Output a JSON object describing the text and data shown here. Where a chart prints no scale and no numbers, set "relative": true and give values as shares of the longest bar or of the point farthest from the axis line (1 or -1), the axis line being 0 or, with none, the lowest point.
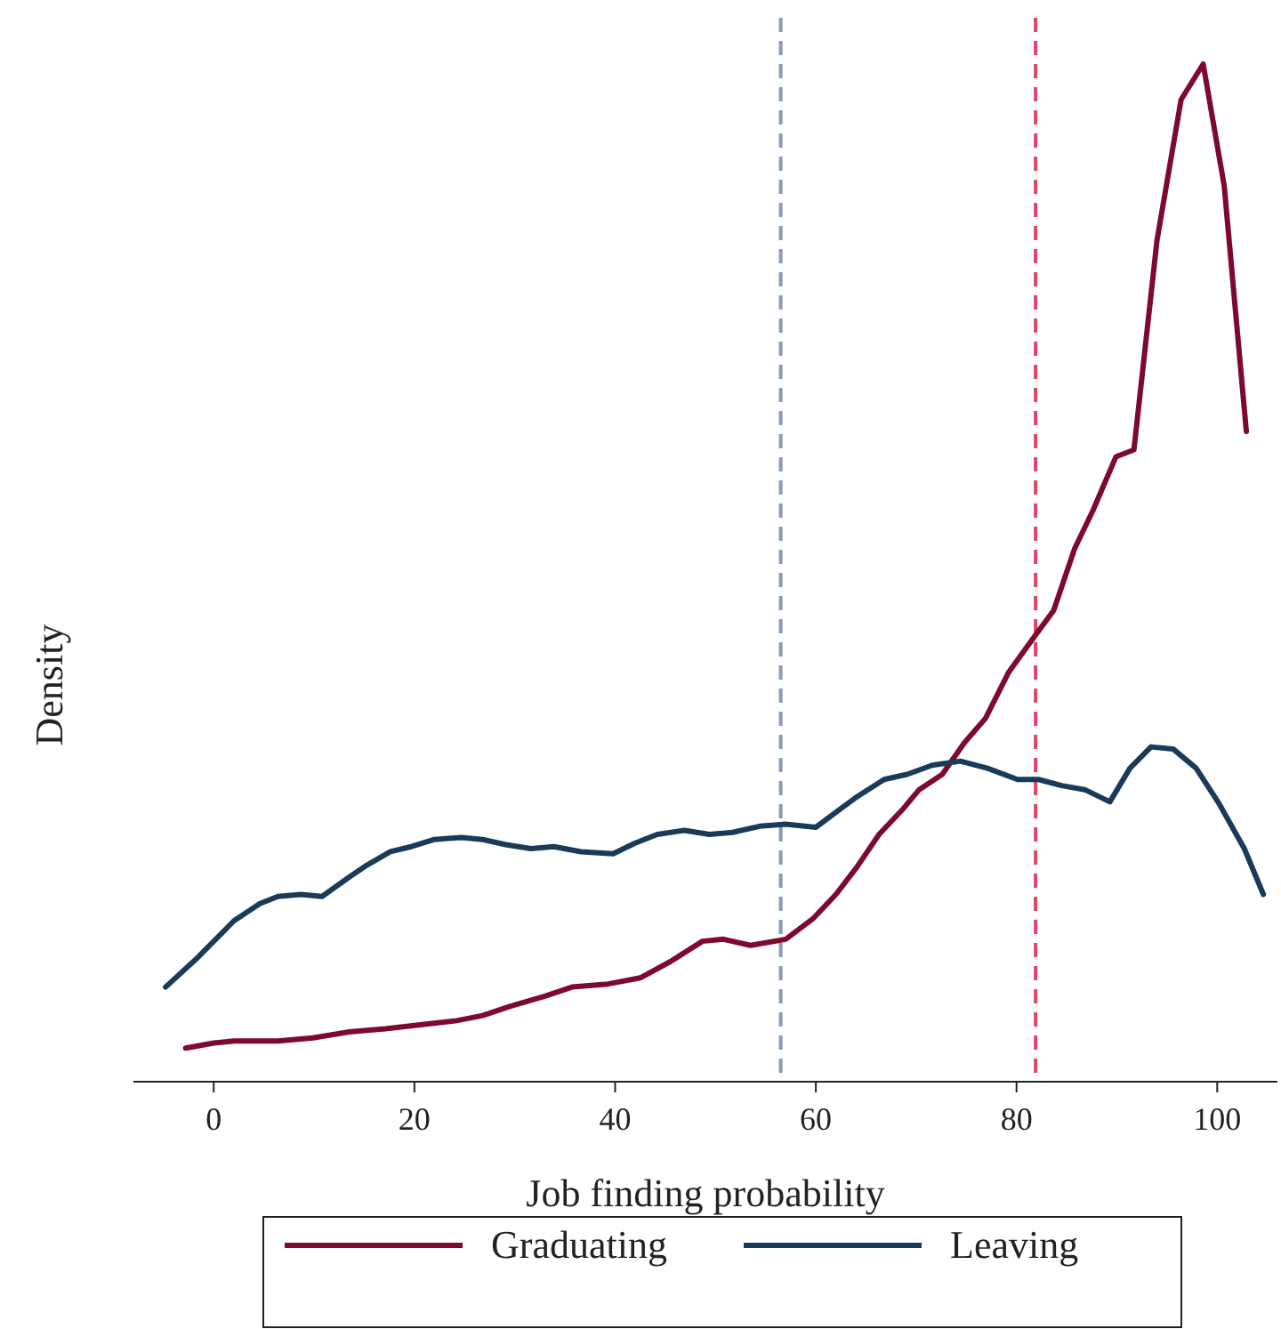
{
  "chart_data": {
    "type": "line",
    "xlabel": "Job finding probability",
    "ylabel": "Density",
    "relative": true,
    "xlim": [
      -8,
      106
    ],
    "xticks": [
      0,
      20,
      40,
      60,
      80,
      100
    ],
    "legend": "bottom",
    "line_style": "solid",
    "marker": "none",
    "ref_lines": [
      {
        "axis": "x",
        "value": 56.5,
        "color": "#8a9bb4",
        "line_style": "dashed"
      },
      {
        "axis": "x",
        "value": 81.9,
        "color": "#e0446a",
        "line_style": "dashed"
      }
    ],
    "series": [
      {
        "name": "Graduating",
        "color": "#7d0a2c",
        "x": [
          -2.8,
          0,
          2.0,
          6.4,
          9.9,
          13.5,
          17.1,
          20.6,
          24.2,
          26.8,
          29.5,
          33.0,
          35.7,
          39.3,
          42.5,
          45.5,
          48.7,
          50.8,
          53.5,
          57.0,
          59.7,
          62.0,
          64.1,
          66.3,
          68.6,
          70.3,
          72.6,
          74.8,
          76.9,
          79.2,
          81.9,
          83.7,
          85.8,
          87.6,
          89.9,
          91.7,
          94.0,
          96.4,
          98.6,
          100.7,
          102.9
        ],
        "values": [
          0.033,
          0.038,
          0.04,
          0.04,
          0.043,
          0.049,
          0.052,
          0.056,
          0.06,
          0.065,
          0.074,
          0.084,
          0.093,
          0.096,
          0.102,
          0.118,
          0.138,
          0.14,
          0.134,
          0.14,
          0.16,
          0.184,
          0.211,
          0.243,
          0.267,
          0.287,
          0.302,
          0.333,
          0.357,
          0.402,
          0.439,
          0.463,
          0.524,
          0.561,
          0.614,
          0.621,
          0.827,
          0.965,
          1,
          0.88,
          0.639
        ]
      },
      {
        "name": "Leaving",
        "color": "#1a3a5a",
        "x": [
          -4.8,
          -1.6,
          2.0,
          4.6,
          6.4,
          8.7,
          10.8,
          13.5,
          15.3,
          17.6,
          19.7,
          22.0,
          24.7,
          26.8,
          29.1,
          31.6,
          33.9,
          36.6,
          39.8,
          41.9,
          44.2,
          46.9,
          49.4,
          51.7,
          54.4,
          57.0,
          60.0,
          62.3,
          64.1,
          66.8,
          69.1,
          71.6,
          74.4,
          77.1,
          80.1,
          82.2,
          84.5,
          86.8,
          89.3,
          91.3,
          93.4,
          95.6,
          97.9,
          100.2,
          102.7,
          104.6
        ],
        "values": [
          0.093,
          0.122,
          0.158,
          0.175,
          0.182,
          0.184,
          0.182,
          0.201,
          0.213,
          0.226,
          0.231,
          0.238,
          0.24,
          0.238,
          0.233,
          0.229,
          0.231,
          0.226,
          0.224,
          0.234,
          0.243,
          0.247,
          0.243,
          0.245,
          0.251,
          0.253,
          0.25,
          0.267,
          0.28,
          0.297,
          0.302,
          0.311,
          0.315,
          0.308,
          0.297,
          0.297,
          0.291,
          0.287,
          0.275,
          0.308,
          0.329,
          0.327,
          0.308,
          0.273,
          0.229,
          0.184
        ]
      }
    ]
  }
}
